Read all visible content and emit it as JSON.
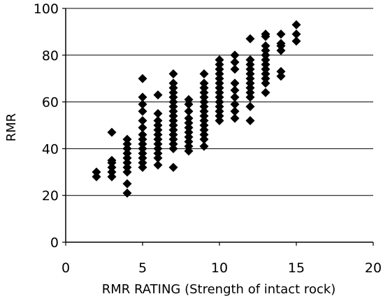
{
  "chart_data": {
    "type": "scatter",
    "title": "",
    "xlabel": "RMR RATING (Strength of intact rock)",
    "ylabel": "RMR",
    "xlim": [
      0,
      20
    ],
    "ylim": [
      0,
      100
    ],
    "x_ticks": [
      0,
      5,
      10,
      15,
      20
    ],
    "y_ticks": [
      0,
      20,
      40,
      60,
      80,
      100
    ],
    "x_tick_labels": [
      "0",
      "5",
      "10",
      "15",
      "20"
    ],
    "y_tick_labels": [
      "0",
      "20",
      "40",
      "60",
      "80",
      "100"
    ],
    "grid": "horizontal",
    "legend": "none",
    "marker": "diamond",
    "marker_color": "#000000",
    "series": [
      {
        "points": [
          [
            2,
            28
          ],
          [
            2,
            30
          ],
          [
            3,
            28
          ],
          [
            3,
            30
          ],
          [
            3,
            32
          ],
          [
            3,
            34
          ],
          [
            3,
            35
          ],
          [
            3,
            47
          ],
          [
            4,
            21
          ],
          [
            4,
            25
          ],
          [
            4,
            30
          ],
          [
            4,
            32
          ],
          [
            4,
            34
          ],
          [
            4,
            36
          ],
          [
            4,
            38
          ],
          [
            4,
            40
          ],
          [
            4,
            42
          ],
          [
            4,
            44
          ],
          [
            5,
            32
          ],
          [
            5,
            34
          ],
          [
            5,
            36
          ],
          [
            5,
            38
          ],
          [
            5,
            40
          ],
          [
            5,
            42
          ],
          [
            5,
            44
          ],
          [
            5,
            46
          ],
          [
            5,
            49
          ],
          [
            5,
            52
          ],
          [
            5,
            56
          ],
          [
            5,
            59
          ],
          [
            5,
            62
          ],
          [
            5,
            70
          ],
          [
            6,
            33
          ],
          [
            6,
            36
          ],
          [
            6,
            38
          ],
          [
            6,
            40
          ],
          [
            6,
            42
          ],
          [
            6,
            44
          ],
          [
            6,
            46
          ],
          [
            6,
            48
          ],
          [
            6,
            50
          ],
          [
            6,
            52
          ],
          [
            6,
            55
          ],
          [
            6,
            63
          ],
          [
            7,
            32
          ],
          [
            7,
            40
          ],
          [
            7,
            42
          ],
          [
            7,
            44
          ],
          [
            7,
            46
          ],
          [
            7,
            48
          ],
          [
            7,
            50
          ],
          [
            7,
            52
          ],
          [
            7,
            54
          ],
          [
            7,
            56
          ],
          [
            7,
            58
          ],
          [
            7,
            60
          ],
          [
            7,
            62
          ],
          [
            7,
            64
          ],
          [
            7,
            66
          ],
          [
            7,
            68
          ],
          [
            7,
            72
          ],
          [
            8,
            39
          ],
          [
            8,
            41
          ],
          [
            8,
            43
          ],
          [
            8,
            45
          ],
          [
            8,
            47
          ],
          [
            8,
            49
          ],
          [
            8,
            51
          ],
          [
            8,
            53
          ],
          [
            8,
            56
          ],
          [
            8,
            59
          ],
          [
            8,
            61
          ],
          [
            9,
            41
          ],
          [
            9,
            44
          ],
          [
            9,
            46
          ],
          [
            9,
            48
          ],
          [
            9,
            50
          ],
          [
            9,
            52
          ],
          [
            9,
            54
          ],
          [
            9,
            56
          ],
          [
            9,
            58
          ],
          [
            9,
            60
          ],
          [
            9,
            62
          ],
          [
            9,
            64
          ],
          [
            9,
            66
          ],
          [
            9,
            68
          ],
          [
            9,
            72
          ],
          [
            10,
            52
          ],
          [
            10,
            54
          ],
          [
            10,
            56
          ],
          [
            10,
            58
          ],
          [
            10,
            60
          ],
          [
            10,
            62
          ],
          [
            10,
            64
          ],
          [
            10,
            66
          ],
          [
            10,
            68
          ],
          [
            10,
            70
          ],
          [
            10,
            72
          ],
          [
            10,
            74
          ],
          [
            10,
            76
          ],
          [
            10,
            78
          ],
          [
            11,
            53
          ],
          [
            11,
            56
          ],
          [
            11,
            59
          ],
          [
            11,
            62
          ],
          [
            11,
            65
          ],
          [
            11,
            68
          ],
          [
            11,
            74
          ],
          [
            11,
            77
          ],
          [
            11,
            80
          ],
          [
            12,
            52
          ],
          [
            12,
            58
          ],
          [
            12,
            62
          ],
          [
            12,
            64
          ],
          [
            12,
            66
          ],
          [
            12,
            68
          ],
          [
            12,
            70
          ],
          [
            12,
            72
          ],
          [
            12,
            74
          ],
          [
            12,
            76
          ],
          [
            12,
            78
          ],
          [
            12,
            87
          ],
          [
            13,
            64
          ],
          [
            13,
            68
          ],
          [
            13,
            70
          ],
          [
            13,
            72
          ],
          [
            13,
            74
          ],
          [
            13,
            76
          ],
          [
            13,
            78
          ],
          [
            13,
            80
          ],
          [
            13,
            82
          ],
          [
            13,
            84
          ],
          [
            13,
            88
          ],
          [
            13,
            89
          ],
          [
            14,
            71
          ],
          [
            14,
            73
          ],
          [
            14,
            82
          ],
          [
            14,
            84
          ],
          [
            14,
            85
          ],
          [
            14,
            89
          ],
          [
            15,
            86
          ],
          [
            15,
            89
          ],
          [
            15,
            93
          ]
        ]
      }
    ]
  }
}
